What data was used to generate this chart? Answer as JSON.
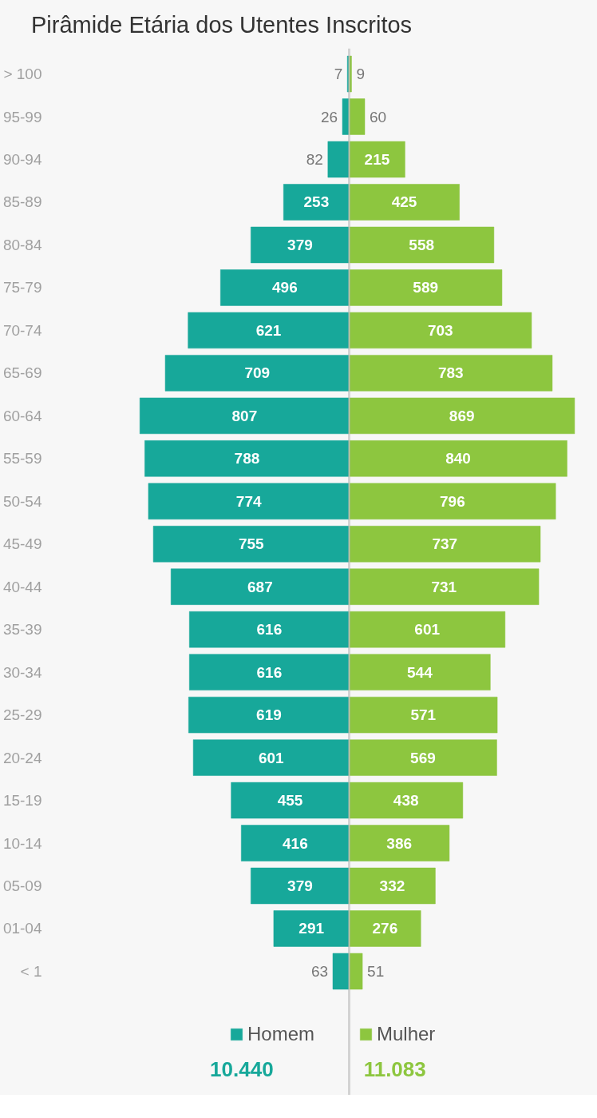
{
  "chart_data": [
    {
      "type": "bar",
      "orientation": "horizontal",
      "title": "Pirâmide Etária dos Utentes Inscritos",
      "categories": [
        "> 100",
        "95-99",
        "90-94",
        "85-89",
        "80-84",
        "75-79",
        "70-74",
        "65-69",
        "60-64",
        "55-59",
        "50-54",
        "45-49",
        "40-44",
        "35-39",
        "30-34",
        "25-29",
        "20-24",
        "15-19",
        "10-14",
        "05-09",
        "01-04",
        "< 1"
      ],
      "series": [
        {
          "name": "Homem",
          "color": "#17a89a",
          "values": [
            7,
            26,
            82,
            253,
            379,
            496,
            621,
            709,
            807,
            788,
            774,
            755,
            687,
            616,
            616,
            619,
            601,
            455,
            416,
            379,
            291,
            63
          ]
        }
      ],
      "data_labels": true,
      "grid": false,
      "legend": "bottom right",
      "tick_labels": "y",
      "annotations": [
        "10.440"
      ]
    },
    {
      "type": "bar",
      "orientation": "horizontal",
      "categories": [
        null,
        null,
        null,
        null,
        null,
        null,
        null,
        null,
        null,
        null,
        null,
        null,
        null,
        null,
        null,
        null,
        null,
        null,
        null,
        null,
        null,
        null
      ],
      "series": [
        {
          "name": "Mulher",
          "color": "#8dc63f",
          "values": [
            9,
            60,
            215,
            425,
            558,
            589,
            703,
            783,
            869,
            840,
            796,
            737,
            731,
            601,
            544,
            571,
            569,
            438,
            386,
            332,
            276,
            51
          ]
        }
      ],
      "data_labels": true,
      "grid": false,
      "legend": "bottom left",
      "tick_labels": false,
      "annotations": [
        "11.083"
      ]
    }
  ]
}
